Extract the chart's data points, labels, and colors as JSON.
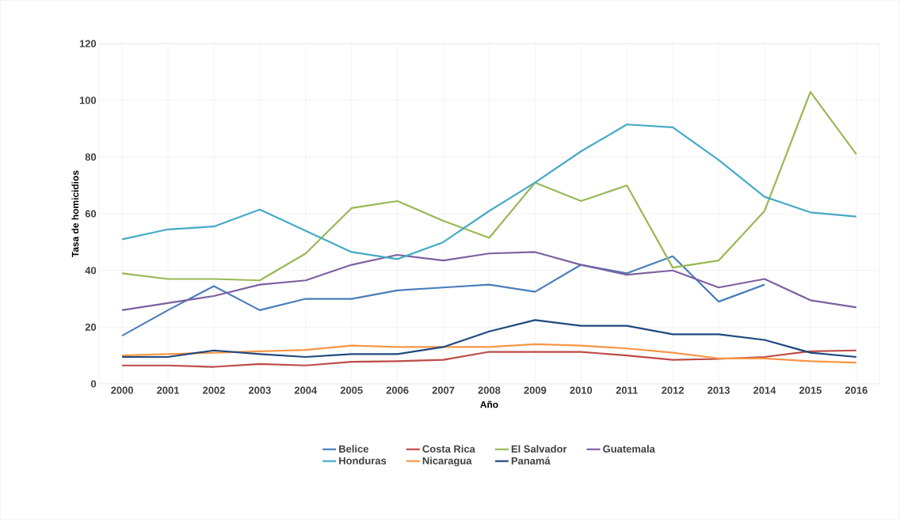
{
  "chart_data": {
    "type": "line",
    "xlabel": "Año",
    "ylabel": "Tasa de homicidios",
    "categories": [
      "2000",
      "2001",
      "2002",
      "2003",
      "2004",
      "2005",
      "2006",
      "2007",
      "2008",
      "2009",
      "2010",
      "2011",
      "2012",
      "2013",
      "2014",
      "2015",
      "2016"
    ],
    "ylim": [
      0,
      120
    ],
    "yticks": [
      0,
      20,
      40,
      60,
      80,
      100,
      120
    ],
    "grid": true,
    "legend": "bottom",
    "line_style": "solid",
    "marker": "none",
    "series": [
      {
        "name": "Belice",
        "color": "#4a7ebb",
        "values": [
          17,
          26,
          34.5,
          26,
          30,
          30,
          33,
          34,
          35,
          32.5,
          42,
          39,
          45,
          29,
          35,
          null,
          null
        ]
      },
      {
        "name": "Costa Rica",
        "color": "#be4b48",
        "values": [
          6.5,
          6.5,
          6,
          7,
          6.5,
          7.8,
          8,
          8.5,
          11.3,
          11.3,
          11.3,
          10,
          8.5,
          8.8,
          9.5,
          11.5,
          11.8
        ]
      },
      {
        "name": "El Salvador",
        "color": "#98b954",
        "values": [
          39,
          37,
          37,
          36.5,
          46,
          62,
          64.5,
          57.5,
          51.5,
          71,
          64.5,
          70,
          41,
          43.5,
          61,
          103,
          81
        ]
      },
      {
        "name": "Guatemala",
        "color": "#7d60a0",
        "values": [
          26,
          28.5,
          31,
          35,
          36.5,
          42,
          45.5,
          43.5,
          46,
          46.5,
          42,
          38.5,
          40,
          34,
          37,
          29.5,
          27
        ]
      },
      {
        "name": "Honduras",
        "color": "#46aac5",
        "values": [
          51,
          54.5,
          55.5,
          61.5,
          54,
          46.5,
          44,
          50,
          61,
          71,
          82,
          91.5,
          90.5,
          79,
          66,
          60.5,
          59
        ]
      },
      {
        "name": "Nicaragua",
        "color": "#f79646",
        "values": [
          10,
          10.5,
          11,
          11.5,
          12,
          13.5,
          13,
          13,
          13,
          14,
          13.5,
          12.5,
          11,
          9,
          9,
          8,
          7.5
        ]
      },
      {
        "name": "Panamá",
        "color": "#1f497d",
        "values": [
          9.5,
          9.5,
          11.8,
          10.5,
          9.5,
          10.5,
          10.5,
          13,
          18.5,
          22.5,
          20.5,
          20.5,
          17.5,
          17.5,
          15.5,
          11,
          9.5
        ]
      }
    ]
  }
}
